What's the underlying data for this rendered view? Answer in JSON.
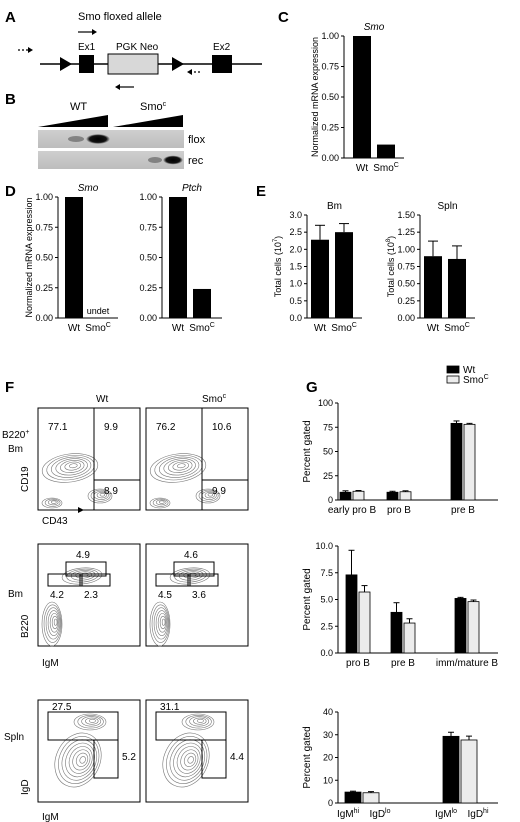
{
  "panels": {
    "A": "A",
    "B": "B",
    "C": "C",
    "D": "D",
    "E": "E",
    "F": "F",
    "G": "G"
  },
  "panelA": {
    "title": "Smo floxed allele",
    "ex1": "Ex1",
    "pgk": "PGK Neo",
    "ex2": "Ex2"
  },
  "panelB": {
    "wt": "WT",
    "smo": "Smo",
    "smo_sup": "c",
    "flox": "flox",
    "rec": "rec"
  },
  "panelF": {
    "col_wt": "Wt",
    "col_smo": "Smo",
    "col_smo_sup": "c",
    "row1_label1": "B220",
    "row1_label1_sup": "+",
    "row1_label2": "Bm",
    "row2_label": "Bm",
    "row3_label": "Spln",
    "y1": "CD19",
    "x1": "CD43",
    "y2": "B220",
    "x2": "IgM",
    "y3": "IgD",
    "x3": "IgM",
    "wt_row1": [
      "77.1",
      "9.9",
      "8.9"
    ],
    "smo_row1": [
      "76.2",
      "10.6",
      "9.9"
    ],
    "wt_row2": [
      "4.9",
      "4.2",
      "2.3"
    ],
    "smo_row2": [
      "4.6",
      "4.5",
      "3.6"
    ],
    "wt_row3": [
      "27.5",
      "5.2"
    ],
    "smo_row3": [
      "31.1",
      "4.4"
    ]
  },
  "chart_data": [
    {
      "id": "C",
      "type": "bar",
      "title": "Smo",
      "ylabel": "Normalized mRNA expression",
      "categories": [
        "Wt",
        "Smo"
      ],
      "category_sup": [
        "",
        "C"
      ],
      "values": [
        1.0,
        0.11
      ],
      "ylim": [
        0,
        1.0
      ],
      "ticks": [
        "0.00",
        "0.25",
        "0.50",
        "0.75",
        "1.00"
      ]
    },
    {
      "id": "D1",
      "type": "bar",
      "title": "Smo",
      "ylabel": "Normalized mRNA expression",
      "categories": [
        "Wt",
        "Smo"
      ],
      "category_sup": [
        "",
        "C"
      ],
      "values": [
        1.0,
        0.0
      ],
      "annotation": "undet",
      "ylim": [
        0,
        1.0
      ],
      "ticks": [
        "0.00",
        "0.25",
        "0.50",
        "0.75",
        "1.00"
      ]
    },
    {
      "id": "D2",
      "type": "bar",
      "title": "Ptch",
      "categories": [
        "Wt",
        "Smo"
      ],
      "category_sup": [
        "",
        "C"
      ],
      "values": [
        1.0,
        0.24
      ],
      "ylim": [
        0,
        1.0
      ],
      "ticks": [
        "0.00",
        "0.25",
        "0.50",
        "0.75",
        "1.00"
      ]
    },
    {
      "id": "E1",
      "type": "bar",
      "title": "Bm",
      "ylabel": "Total cells (10",
      "ylabel_sup": "7",
      "ylabel_end": ")",
      "categories": [
        "Wt",
        "Smo"
      ],
      "category_sup": [
        "",
        "C"
      ],
      "values": [
        2.28,
        2.5
      ],
      "errors": [
        0.42,
        0.25
      ],
      "ylim": [
        0,
        3.0
      ],
      "ticks": [
        "0.0",
        "0.5",
        "1.0",
        "1.5",
        "2.0",
        "2.5",
        "3.0"
      ]
    },
    {
      "id": "E2",
      "type": "bar",
      "title": "Spln",
      "ylabel": "Total cells (10",
      "ylabel_sup": "8",
      "ylabel_end": ")",
      "categories": [
        "Wt",
        "Smo"
      ],
      "category_sup": [
        "",
        "C"
      ],
      "values": [
        0.9,
        0.86
      ],
      "errors": [
        0.22,
        0.19
      ],
      "ylim": [
        0,
        1.5
      ],
      "ticks": [
        "0.00",
        "0.25",
        "0.50",
        "0.75",
        "1.00",
        "1.25",
        "1.50"
      ]
    },
    {
      "id": "G1",
      "type": "bar",
      "ylabel": "Percent gated",
      "legend": [
        "Wt",
        "Smo"
      ],
      "legend_sup": [
        "",
        "C"
      ],
      "categories": [
        "early pro B",
        "pro B",
        "pre B"
      ],
      "series": [
        {
          "name": "Wt",
          "values": [
            8,
            8,
            79
          ],
          "errors": [
            1.5,
            1,
            2.5
          ]
        },
        {
          "name": "Smo",
          "values": [
            9,
            8.5,
            78
          ],
          "errors": [
            0.8,
            1,
            1
          ]
        }
      ],
      "ylim": [
        0,
        100
      ],
      "ticks": [
        "0",
        "25",
        "50",
        "75",
        "100"
      ]
    },
    {
      "id": "G2",
      "type": "bar",
      "ylabel": "Percent gated",
      "categories": [
        "pro B",
        "pre B",
        "imm/mature B"
      ],
      "series": [
        {
          "name": "Wt",
          "values": [
            7.3,
            3.8,
            5.1
          ],
          "errors": [
            2.3,
            0.9,
            0.1
          ]
        },
        {
          "name": "Smo",
          "values": [
            5.7,
            2.8,
            4.8
          ],
          "errors": [
            0.6,
            0.4,
            0.15
          ]
        }
      ],
      "ylim": [
        0,
        10.0
      ],
      "ticks": [
        "0.0",
        "2.5",
        "5.0",
        "7.5",
        "10.0"
      ]
    },
    {
      "id": "G3",
      "type": "bar",
      "ylabel": "Percent gated",
      "categories": [
        "IgMhi IgDlo",
        "IgMlo IgDhi"
      ],
      "series": [
        {
          "name": "Wt",
          "values": [
            4.8,
            29.3
          ],
          "errors": [
            0.4,
            1.8
          ]
        },
        {
          "name": "Smo",
          "values": [
            4.5,
            27.7
          ],
          "errors": [
            0.5,
            1.7
          ]
        }
      ],
      "ylim": [
        0,
        40
      ],
      "ticks": [
        "0",
        "10",
        "20",
        "30",
        "40"
      ]
    }
  ]
}
